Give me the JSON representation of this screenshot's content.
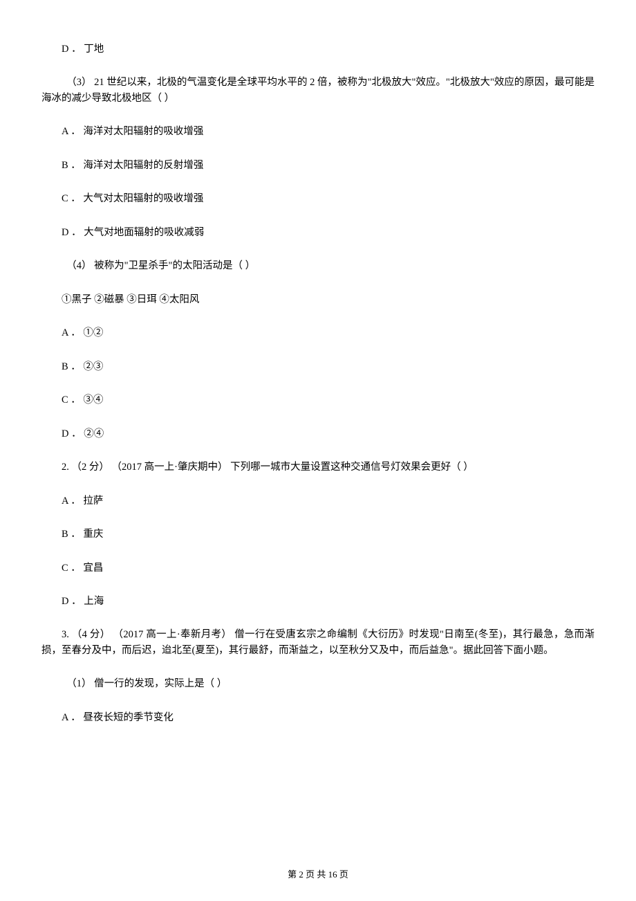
{
  "q_prev_optD": "D ． 丁地",
  "q3": {
    "stem": "（3）  21 世纪以来，北极的气温变化是全球平均水平的 2 倍，被称为\"北极放大\"效应。\"北极放大\"效应的原因，最可能是海冰的减少导致北极地区（      ）",
    "A": "A ． 海洋对太阳辐射的吸收增强",
    "B": "B ． 海洋对太阳辐射的反射增强",
    "C": "C ． 大气对太阳辐射的吸收增强",
    "D": "D ． 大气对地面辐射的吸收减弱"
  },
  "q4": {
    "stem": "（4）  被称为\"卫星杀手\"的太阳活动是（      ）",
    "opts_line": "①黑子    ②磁暴  ③日珥  ④太阳风",
    "A": "A ． ①②",
    "B": "B ． ②③",
    "C": "C ． ③④",
    "D": "D ． ②④"
  },
  "q2": {
    "stem": "2.  （2 分） （2017 高一上·肇庆期中） 下列哪一城市大量设置这种交通信号灯效果会更好（      ）",
    "A": "A ． 拉萨",
    "B": "B ． 重庆",
    "C": "C ． 宜昌",
    "D": "D ． 上海"
  },
  "q3b": {
    "stem": "3.  （4 分） （2017 高一上·奉新月考） 僧一行在受唐玄宗之命编制《大衍历》时发现\"日南至(冬至)，其行最急，急而渐损，至春分及中，而后迟，迨北至(夏至)，其行最舒，而渐益之，以至秋分又及中，而后益急\"。据此回答下面小题。",
    "sub1": "（1）  僧一行的发现，实际上是（      ）",
    "A": "A ． 昼夜长短的季节变化"
  },
  "footer": "第 2 页 共 16 页"
}
